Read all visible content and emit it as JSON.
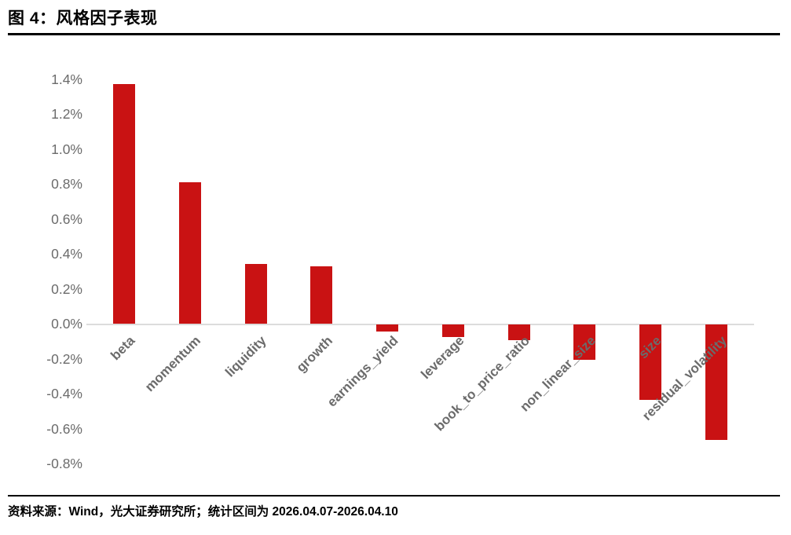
{
  "header": {
    "title": "图 4：风格因子表现"
  },
  "footer": {
    "source": "资料来源：Wind，光大证券研究所；统计区间为 2026.04.07-2026.04.10"
  },
  "colors": {
    "bar": "#c91213",
    "axis_label": "#6b6b6b",
    "zero_line": "#dcdcdc",
    "rule": "#000000"
  },
  "chart_data": {
    "type": "bar",
    "title": "风格因子表现",
    "categories": [
      "beta",
      "momentum",
      "liquidity",
      "growth",
      "earnings_yield",
      "leverage",
      "book_to_price_ratio",
      "non_linear_size",
      "size",
      "residual_volatility"
    ],
    "values": [
      1.37,
      0.81,
      0.34,
      0.33,
      -0.04,
      -0.07,
      -0.09,
      -0.2,
      -0.43,
      -0.66
    ],
    "unit": "%",
    "xlabel": "",
    "ylabel": "",
    "ylim": [
      -0.8,
      1.4
    ],
    "ytick_step": 0.2,
    "ytick_labels": [
      "1.4%",
      "1.2%",
      "1.0%",
      "0.8%",
      "0.6%",
      "0.4%",
      "0.2%",
      "0.0%",
      "-0.2%",
      "-0.4%",
      "-0.6%",
      "-0.8%"
    ],
    "grid": false,
    "legend": null,
    "bar_orientation": "vertical",
    "xtick_rotation_deg": 45
  }
}
